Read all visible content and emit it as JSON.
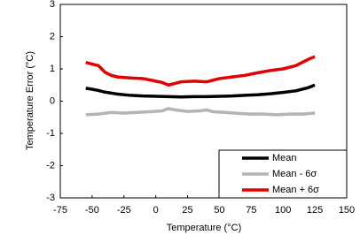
{
  "chart_data": {
    "type": "line",
    "xlabel": "Temperature (°C)",
    "ylabel": "Temperature Error (°C)",
    "xlim": [
      -75,
      150
    ],
    "xticks": [
      -75,
      -50,
      -25,
      0,
      25,
      50,
      75,
      100,
      125,
      150
    ],
    "ylim": [
      -3,
      3
    ],
    "yticks": [
      -3,
      -2,
      -1,
      0,
      1,
      2,
      3
    ],
    "grid": false,
    "legend": "lower right",
    "series": [
      {
        "name": "Mean",
        "color": "#000000",
        "x": [
          -55,
          -50,
          -45,
          -40,
          -30,
          -20,
          -10,
          0,
          10,
          20,
          30,
          40,
          50,
          60,
          70,
          80,
          90,
          100,
          110,
          120,
          125
        ],
        "values": [
          0.4,
          0.37,
          0.33,
          0.28,
          0.22,
          0.18,
          0.16,
          0.15,
          0.14,
          0.13,
          0.14,
          0.14,
          0.15,
          0.16,
          0.18,
          0.2,
          0.23,
          0.27,
          0.32,
          0.42,
          0.5
        ]
      },
      {
        "name": "Mean - 6σ",
        "color": "#b4b4b4",
        "x": [
          -55,
          -45,
          -35,
          -25,
          -15,
          -5,
          5,
          10,
          15,
          25,
          35,
          40,
          45,
          55,
          65,
          75,
          85,
          95,
          105,
          115,
          125
        ],
        "values": [
          -0.42,
          -0.4,
          -0.35,
          -0.37,
          -0.35,
          -0.33,
          -0.3,
          -0.23,
          -0.27,
          -0.32,
          -0.3,
          -0.27,
          -0.33,
          -0.35,
          -0.38,
          -0.4,
          -0.4,
          -0.42,
          -0.4,
          -0.4,
          -0.37
        ]
      },
      {
        "name": "Mean + 6σ",
        "color": "#e00000",
        "x": [
          -55,
          -50,
          -45,
          -40,
          -35,
          -30,
          -20,
          -10,
          0,
          5,
          10,
          15,
          20,
          30,
          40,
          50,
          60,
          70,
          80,
          90,
          100,
          110,
          120,
          125
        ],
        "values": [
          1.2,
          1.15,
          1.1,
          0.9,
          0.8,
          0.75,
          0.72,
          0.7,
          0.62,
          0.58,
          0.5,
          0.55,
          0.6,
          0.62,
          0.6,
          0.7,
          0.75,
          0.8,
          0.88,
          0.95,
          1.0,
          1.1,
          1.3,
          1.38
        ]
      }
    ]
  }
}
